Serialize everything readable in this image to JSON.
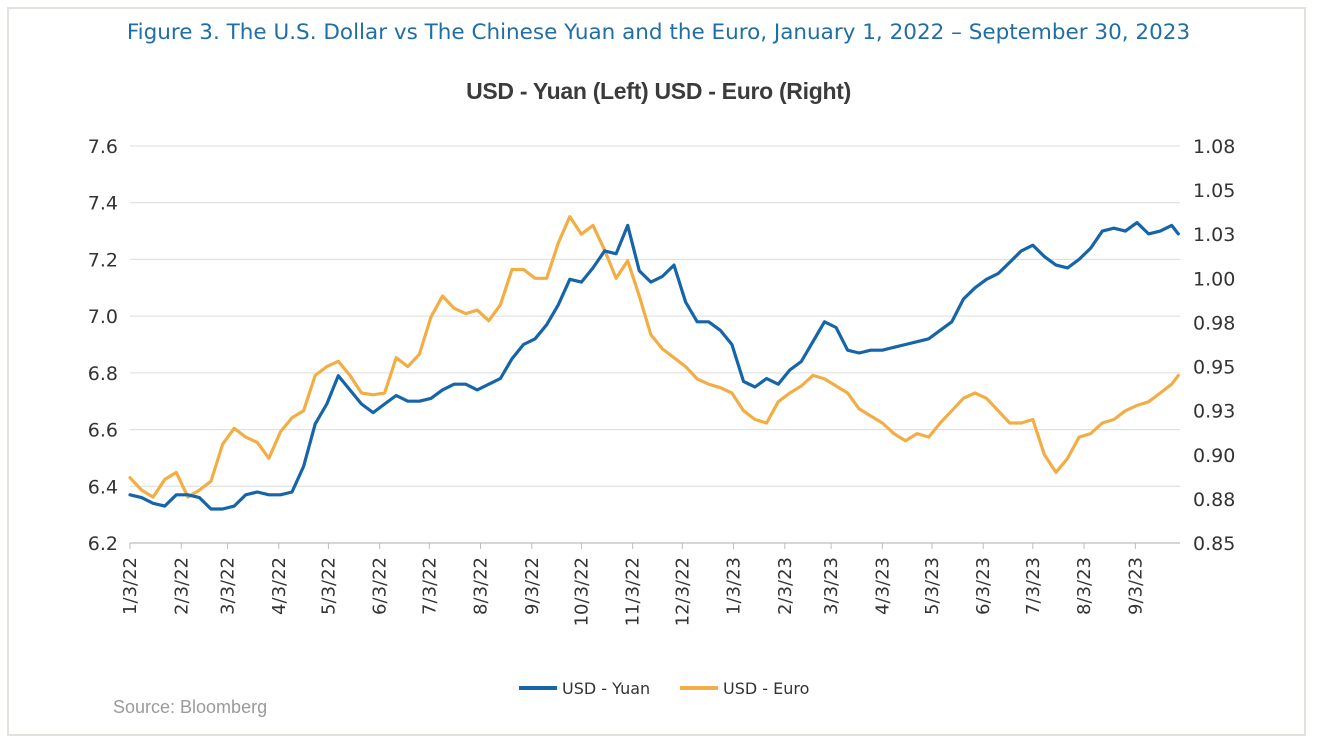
{
  "figure": {
    "title": "Figure 3. The U.S. Dollar vs The Chinese Yuan and the Euro, January 1, 2022 – September 30, 2023",
    "source": "Source: Bloomberg"
  },
  "colors": {
    "yuan": "#1565a8",
    "euro": "#f2ae45",
    "title": "#1f6fa6",
    "grid": "#dcdcdc"
  },
  "chart_data": {
    "type": "line",
    "title": "USD - Yuan (Left) USD - Euro (Right)",
    "xlabel": "",
    "ylabel_left": "",
    "ylabel_right": "",
    "x_ticks": [
      "1/3/22",
      "2/3/22",
      "3/3/22",
      "4/3/22",
      "5/3/22",
      "6/3/22",
      "7/3/22",
      "8/3/22",
      "9/3/22",
      "10/3/22",
      "11/3/22",
      "12/3/22",
      "1/3/23",
      "2/3/23",
      "3/3/23",
      "4/3/23",
      "5/3/23",
      "6/3/23",
      "7/3/23",
      "8/3/23",
      "9/3/23"
    ],
    "x_range": [
      "1/3/22",
      "9/30/23"
    ],
    "y_left": {
      "min": 6.2,
      "max": 7.6,
      "ticks": [
        "6.2",
        "6.4",
        "6.6",
        "6.8",
        "7.0",
        "7.2",
        "7.4",
        "7.6"
      ]
    },
    "y_right": {
      "min": 0.85,
      "max": 1.075,
      "ticks": [
        "0.85",
        "0.88",
        "0.90",
        "0.93",
        "0.95",
        "0.98",
        "1.00",
        "1.03",
        "1.05",
        "1.08"
      ]
    },
    "grid": true,
    "legend_position": "bottom",
    "series": [
      {
        "name": "USD - Yuan",
        "axis": "left",
        "x": [
          "1/3/22",
          "1/10/22",
          "1/17/22",
          "1/24/22",
          "1/31/22",
          "2/7/22",
          "2/14/22",
          "2/21/22",
          "2/28/22",
          "3/7/22",
          "3/14/22",
          "3/21/22",
          "3/28/22",
          "4/4/22",
          "4/11/22",
          "4/18/22",
          "4/25/22",
          "5/2/22",
          "5/9/22",
          "5/16/22",
          "5/23/22",
          "5/30/22",
          "6/6/22",
          "6/13/22",
          "6/20/22",
          "6/27/22",
          "7/4/22",
          "7/11/22",
          "7/18/22",
          "7/25/22",
          "8/1/22",
          "8/8/22",
          "8/15/22",
          "8/22/22",
          "8/29/22",
          "9/5/22",
          "9/12/22",
          "9/19/22",
          "9/26/22",
          "10/3/22",
          "10/10/22",
          "10/17/22",
          "10/24/22",
          "10/31/22",
          "11/7/22",
          "11/14/22",
          "11/21/22",
          "11/28/22",
          "12/5/22",
          "12/12/22",
          "12/19/22",
          "12/26/22",
          "1/2/23",
          "1/9/23",
          "1/16/23",
          "1/23/23",
          "1/30/23",
          "2/6/23",
          "2/13/23",
          "2/20/23",
          "2/27/23",
          "3/6/23",
          "3/13/23",
          "3/20/23",
          "3/27/23",
          "4/3/23",
          "4/10/23",
          "4/17/23",
          "4/24/23",
          "5/1/23",
          "5/8/23",
          "5/15/23",
          "5/22/23",
          "5/29/23",
          "6/5/23",
          "6/12/23",
          "6/19/23",
          "6/26/23",
          "7/3/23",
          "7/10/23",
          "7/17/23",
          "7/24/23",
          "7/31/23",
          "8/7/23",
          "8/14/23",
          "8/21/23",
          "8/28/23",
          "9/4/23",
          "9/11/23",
          "9/18/23",
          "9/25/23",
          "9/29/23"
        ],
        "values": [
          6.37,
          6.36,
          6.34,
          6.33,
          6.37,
          6.37,
          6.36,
          6.32,
          6.32,
          6.33,
          6.37,
          6.38,
          6.37,
          6.37,
          6.38,
          6.47,
          6.62,
          6.69,
          6.79,
          6.74,
          6.69,
          6.66,
          6.69,
          6.72,
          6.7,
          6.7,
          6.71,
          6.74,
          6.76,
          6.76,
          6.74,
          6.76,
          6.78,
          6.85,
          6.9,
          6.92,
          6.97,
          7.04,
          7.13,
          7.12,
          7.17,
          7.23,
          7.22,
          7.32,
          7.16,
          7.12,
          7.14,
          7.18,
          7.05,
          6.98,
          6.98,
          6.95,
          6.9,
          6.77,
          6.75,
          6.78,
          6.76,
          6.81,
          6.84,
          6.91,
          6.98,
          6.96,
          6.88,
          6.87,
          6.88,
          6.88,
          6.89,
          6.9,
          6.91,
          6.92,
          6.95,
          6.98,
          7.06,
          7.1,
          7.13,
          7.15,
          7.19,
          7.23,
          7.25,
          7.21,
          7.18,
          7.17,
          7.2,
          7.24,
          7.3,
          7.31,
          7.3,
          7.33,
          7.29,
          7.3,
          7.32,
          7.29
        ]
      },
      {
        "name": "USD - Euro",
        "axis": "right",
        "x": [
          "1/3/22",
          "1/10/22",
          "1/17/22",
          "1/24/22",
          "1/31/22",
          "2/7/22",
          "2/14/22",
          "2/21/22",
          "2/28/22",
          "3/7/22",
          "3/14/22",
          "3/21/22",
          "3/28/22",
          "4/4/22",
          "4/11/22",
          "4/18/22",
          "4/25/22",
          "5/2/22",
          "5/9/22",
          "5/16/22",
          "5/23/22",
          "5/30/22",
          "6/6/22",
          "6/13/22",
          "6/20/22",
          "6/27/22",
          "7/4/22",
          "7/11/22",
          "7/18/22",
          "7/25/22",
          "8/1/22",
          "8/8/22",
          "8/15/22",
          "8/22/22",
          "8/29/22",
          "9/5/22",
          "9/12/22",
          "9/19/22",
          "9/26/22",
          "10/3/22",
          "10/10/22",
          "10/17/22",
          "10/24/22",
          "10/31/22",
          "11/7/22",
          "11/14/22",
          "11/21/22",
          "11/28/22",
          "12/5/22",
          "12/12/22",
          "12/19/22",
          "12/26/22",
          "1/2/23",
          "1/9/23",
          "1/16/23",
          "1/23/23",
          "1/30/23",
          "2/6/23",
          "2/13/23",
          "2/20/23",
          "2/27/23",
          "3/6/23",
          "3/13/23",
          "3/20/23",
          "3/27/23",
          "4/3/23",
          "4/10/23",
          "4/17/23",
          "4/24/23",
          "5/1/23",
          "5/8/23",
          "5/15/23",
          "5/22/23",
          "5/29/23",
          "6/5/23",
          "6/12/23",
          "6/19/23",
          "6/26/23",
          "7/3/23",
          "7/10/23",
          "7/17/23",
          "7/24/23",
          "7/31/23",
          "8/7/23",
          "8/14/23",
          "8/21/23",
          "8/28/23",
          "9/4/23",
          "9/11/23",
          "9/18/23",
          "9/25/23",
          "9/29/23"
        ],
        "values": [
          0.887,
          0.88,
          0.876,
          0.886,
          0.89,
          0.876,
          0.88,
          0.885,
          0.906,
          0.915,
          0.91,
          0.907,
          0.898,
          0.913,
          0.921,
          0.925,
          0.945,
          0.95,
          0.953,
          0.945,
          0.935,
          0.934,
          0.935,
          0.955,
          0.95,
          0.957,
          0.978,
          0.99,
          0.983,
          0.98,
          0.982,
          0.976,
          0.985,
          1.005,
          1.005,
          1.0,
          1.0,
          1.02,
          1.035,
          1.025,
          1.03,
          1.016,
          1.0,
          1.01,
          0.99,
          0.968,
          0.96,
          0.955,
          0.95,
          0.943,
          0.94,
          0.938,
          0.935,
          0.925,
          0.92,
          0.918,
          0.93,
          0.935,
          0.939,
          0.945,
          0.943,
          0.939,
          0.935,
          0.926,
          0.922,
          0.918,
          0.912,
          0.908,
          0.912,
          0.91,
          0.918,
          0.925,
          0.932,
          0.935,
          0.932,
          0.925,
          0.918,
          0.918,
          0.92,
          0.9,
          0.89,
          0.898,
          0.91,
          0.912,
          0.918,
          0.92,
          0.925,
          0.928,
          0.93,
          0.935,
          0.94,
          0.945
        ]
      }
    ]
  }
}
